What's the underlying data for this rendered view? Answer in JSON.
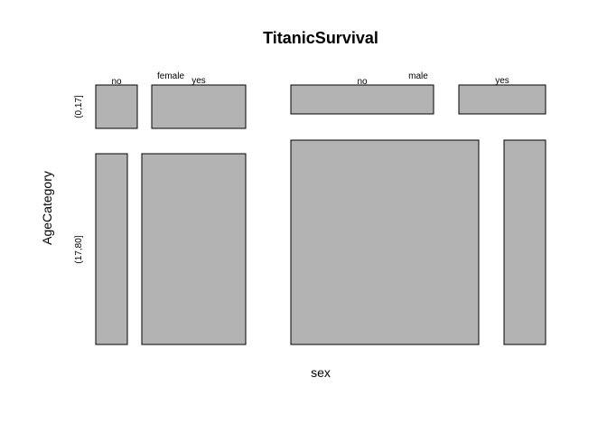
{
  "chart_data": {
    "type": "mosaic",
    "title": "TitanicSurvival",
    "xlabel": "sex",
    "ylabel": "AgeCategory",
    "x_categories": [
      "female",
      "male"
    ],
    "y_categories": [
      "(0,17]",
      "(17,80]"
    ],
    "survived_categories": [
      "no",
      "yes"
    ],
    "tiles": [
      {
        "sex": "female",
        "age": "(0,17]",
        "survived": "no"
      },
      {
        "sex": "female",
        "age": "(0,17]",
        "survived": "yes"
      },
      {
        "sex": "female",
        "age": "(17,80]",
        "survived": "no"
      },
      {
        "sex": "female",
        "age": "(17,80]",
        "survived": "yes"
      },
      {
        "sex": "male",
        "age": "(0,17]",
        "survived": "no"
      },
      {
        "sex": "male",
        "age": "(0,17]",
        "survived": "yes"
      },
      {
        "sex": "male",
        "age": "(17,80]",
        "survived": "no"
      },
      {
        "sex": "male",
        "age": "(17,80]",
        "survived": "yes"
      }
    ],
    "tile_color": "#b3b3b3"
  }
}
